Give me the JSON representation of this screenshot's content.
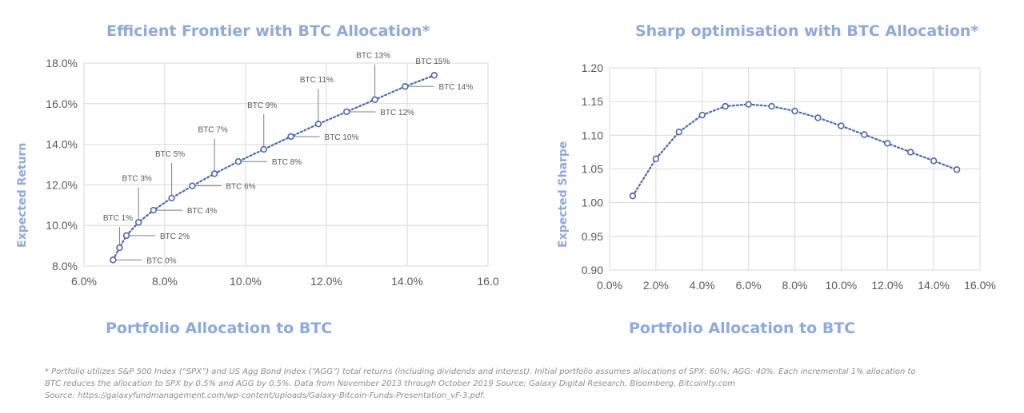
{
  "chart_data": [
    {
      "type": "line",
      "title": "Efficient Frontier with BTC Allocation*",
      "xlabel": "Portfolio Allocation to BTC",
      "ylabel": "Expected Return",
      "xlim": [
        6.0,
        16.0
      ],
      "ylim": [
        8.0,
        18.0
      ],
      "x_ticks": [
        "6.0%",
        "8.0%",
        "10.0%",
        "12.0%",
        "14.0%",
        "16.0"
      ],
      "y_ticks": [
        "8.0%",
        "10.0%",
        "12.0%",
        "14.0%",
        "16.0%",
        "18.0%"
      ],
      "grid": true,
      "series_color": "#4A67B0",
      "points": [
        {
          "label": "BTC 0%",
          "x": 6.72,
          "y": 8.3
        },
        {
          "label": "BTC 1%",
          "x": 6.88,
          "y": 8.9
        },
        {
          "label": "BTC 2%",
          "x": 7.05,
          "y": 9.5
        },
        {
          "label": "BTC 3%",
          "x": 7.35,
          "y": 10.15
        },
        {
          "label": "BTC 4%",
          "x": 7.72,
          "y": 10.75
        },
        {
          "label": "BTC 5%",
          "x": 8.17,
          "y": 11.35
        },
        {
          "label": "BTC 6%",
          "x": 8.68,
          "y": 11.95
        },
        {
          "label": "BTC 7%",
          "x": 9.23,
          "y": 12.55
        },
        {
          "label": "BTC 8%",
          "x": 9.82,
          "y": 13.15
        },
        {
          "label": "BTC 9%",
          "x": 10.45,
          "y": 13.75
        },
        {
          "label": "BTC 10%",
          "x": 11.12,
          "y": 14.38
        },
        {
          "label": "BTC 11%",
          "x": 11.8,
          "y": 15.0
        },
        {
          "label": "BTC 12%",
          "x": 12.5,
          "y": 15.6
        },
        {
          "label": "BTC 13%",
          "x": 13.2,
          "y": 16.2
        },
        {
          "label": "BTC 14%",
          "x": 13.95,
          "y": 16.85
        },
        {
          "label": "BTC 15%",
          "x": 14.67,
          "y": 17.4
        }
      ]
    },
    {
      "type": "line",
      "title": "Sharp optimisation with BTC Allocation*",
      "xlabel": "Portfolio Allocation to BTC",
      "ylabel": "Expected Sharpe",
      "xlim": [
        0.0,
        16.0
      ],
      "ylim": [
        0.9,
        1.2
      ],
      "x_ticks": [
        "0.0%",
        "2.0%",
        "4.0%",
        "6.0%",
        "8.0%",
        "10.0%",
        "12.0%",
        "14.0%",
        "16.0%"
      ],
      "y_ticks": [
        "0.90",
        "0.95",
        "1.00",
        "1.05",
        "1.10",
        "1.15",
        "1.20"
      ],
      "grid": true,
      "series_color": "#4A67B0",
      "x": [
        1,
        2,
        3,
        4,
        5,
        6,
        7,
        8,
        9,
        10,
        11,
        12,
        13,
        14,
        15
      ],
      "y": [
        1.01,
        1.065,
        1.105,
        1.13,
        1.143,
        1.146,
        1.143,
        1.136,
        1.126,
        1.114,
        1.101,
        1.088,
        1.075,
        1.062,
        1.049
      ]
    }
  ],
  "footnote": {
    "line1": "* Portfolio utilizes S&P 500 Index (“SPX”) and US Agg Bond Index (“AGG”) total returns (including dividends and interest). Initial portfolio assumes allocations of SPX: 60%; AGG: 40%. Each incremental 1% allocation to",
    "line2": "BTC reduces the allocation to SPX by 0.5% and AGG by 0.5%. Data from November 2013 through October 2019 Source: Galaxy Digital Research, Bloomberg, Bitcoinity.com",
    "line3": "Source: https://galaxyfundmanagement.com/wp-content/uploads/Galaxy-Bitcoin-Funds-Presentation_vF-3.pdf."
  }
}
